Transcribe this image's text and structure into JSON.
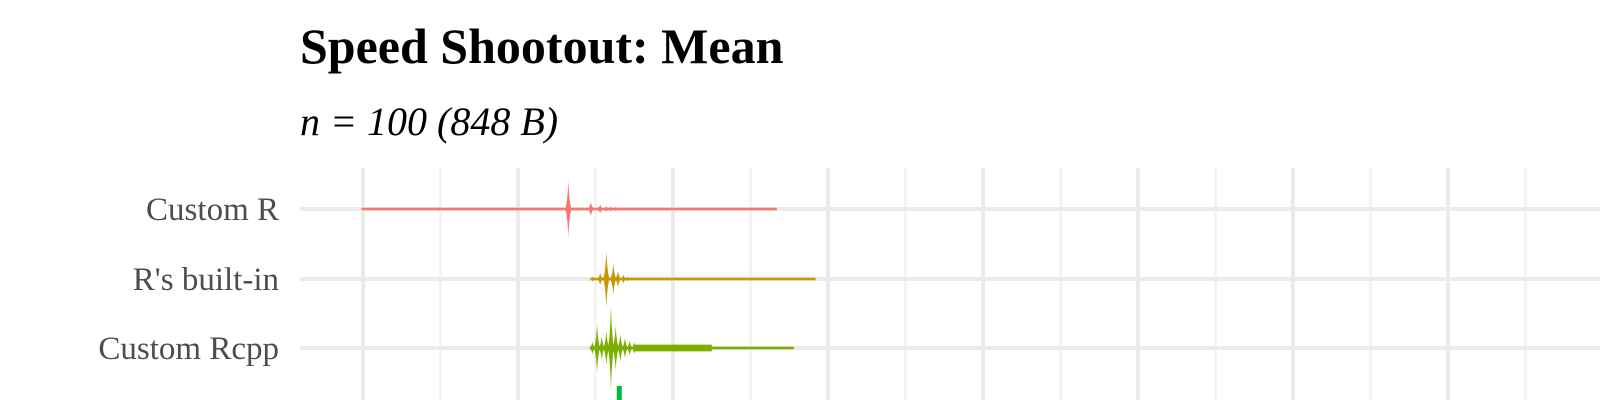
{
  "chart_data": {
    "type": "violin",
    "title": "Speed Shootout: Mean",
    "subtitle": "n = 100 (848 B)",
    "xlabel": "",
    "ylabel": "",
    "categories": [
      "Custom R",
      "R's built-in",
      "Custom Rcpp"
    ],
    "grid": true,
    "legend": "none",
    "series": [
      {
        "category": "Custom R",
        "color": "#F8766D",
        "min": 0.19,
        "max": 2.87,
        "clusters": [
          {
            "at": 1.525,
            "spread": 0.006,
            "half": 1.0
          },
          {
            "at": 1.67,
            "spread": 0.006,
            "half": 0.25
          },
          {
            "at": 1.73,
            "spread": 0.005,
            "half": 0.16
          },
          {
            "at": 1.77,
            "spread": 0.004,
            "half": 0.09
          },
          {
            "at": 1.8,
            "spread": 0.004,
            "half": 0.08
          },
          {
            "at": 1.83,
            "spread": 0.004,
            "half": 0.07
          },
          {
            "at": 1.86,
            "spread": 0.004,
            "half": 0.06
          }
        ]
      },
      {
        "category": "R's built-in",
        "color": "#C99700",
        "min": 1.67,
        "max": 3.12,
        "clusters": [
          {
            "at": 1.68,
            "spread": 0.004,
            "half": 0.09
          },
          {
            "at": 1.73,
            "spread": 0.005,
            "half": 0.22
          },
          {
            "at": 1.77,
            "spread": 0.006,
            "half": 1.0
          },
          {
            "at": 1.815,
            "spread": 0.006,
            "half": 0.55
          },
          {
            "at": 1.845,
            "spread": 0.005,
            "half": 0.28
          },
          {
            "at": 1.88,
            "spread": 0.005,
            "half": 0.15
          },
          {
            "at": 1.91,
            "spread": 0.004,
            "half": 0.08
          }
        ]
      },
      {
        "category": "Custom Rcpp",
        "color": "#7CAE00",
        "min": 1.67,
        "max": 2.98,
        "clusters": [
          {
            "at": 1.68,
            "spread": 0.004,
            "half": 0.22
          },
          {
            "at": 1.71,
            "spread": 0.005,
            "half": 0.85
          },
          {
            "at": 1.74,
            "spread": 0.005,
            "half": 0.4
          },
          {
            "at": 1.77,
            "spread": 0.005,
            "half": 0.6
          },
          {
            "at": 1.8,
            "spread": 0.006,
            "half": 1.5
          },
          {
            "at": 1.83,
            "spread": 0.005,
            "half": 0.8
          },
          {
            "at": 1.86,
            "spread": 0.005,
            "half": 0.5
          },
          {
            "at": 1.89,
            "spread": 0.005,
            "half": 0.35
          },
          {
            "at": 1.92,
            "spread": 0.004,
            "half": 0.25
          },
          {
            "at": 1.95,
            "spread": 0.004,
            "half": 0.2
          }
        ],
        "tail": {
          "from": 1.95,
          "to": 2.45,
          "half": 0.12
        }
      }
    ],
    "partial_series_below": {
      "color": "#00BA38",
      "at": 1.85
    }
  }
}
